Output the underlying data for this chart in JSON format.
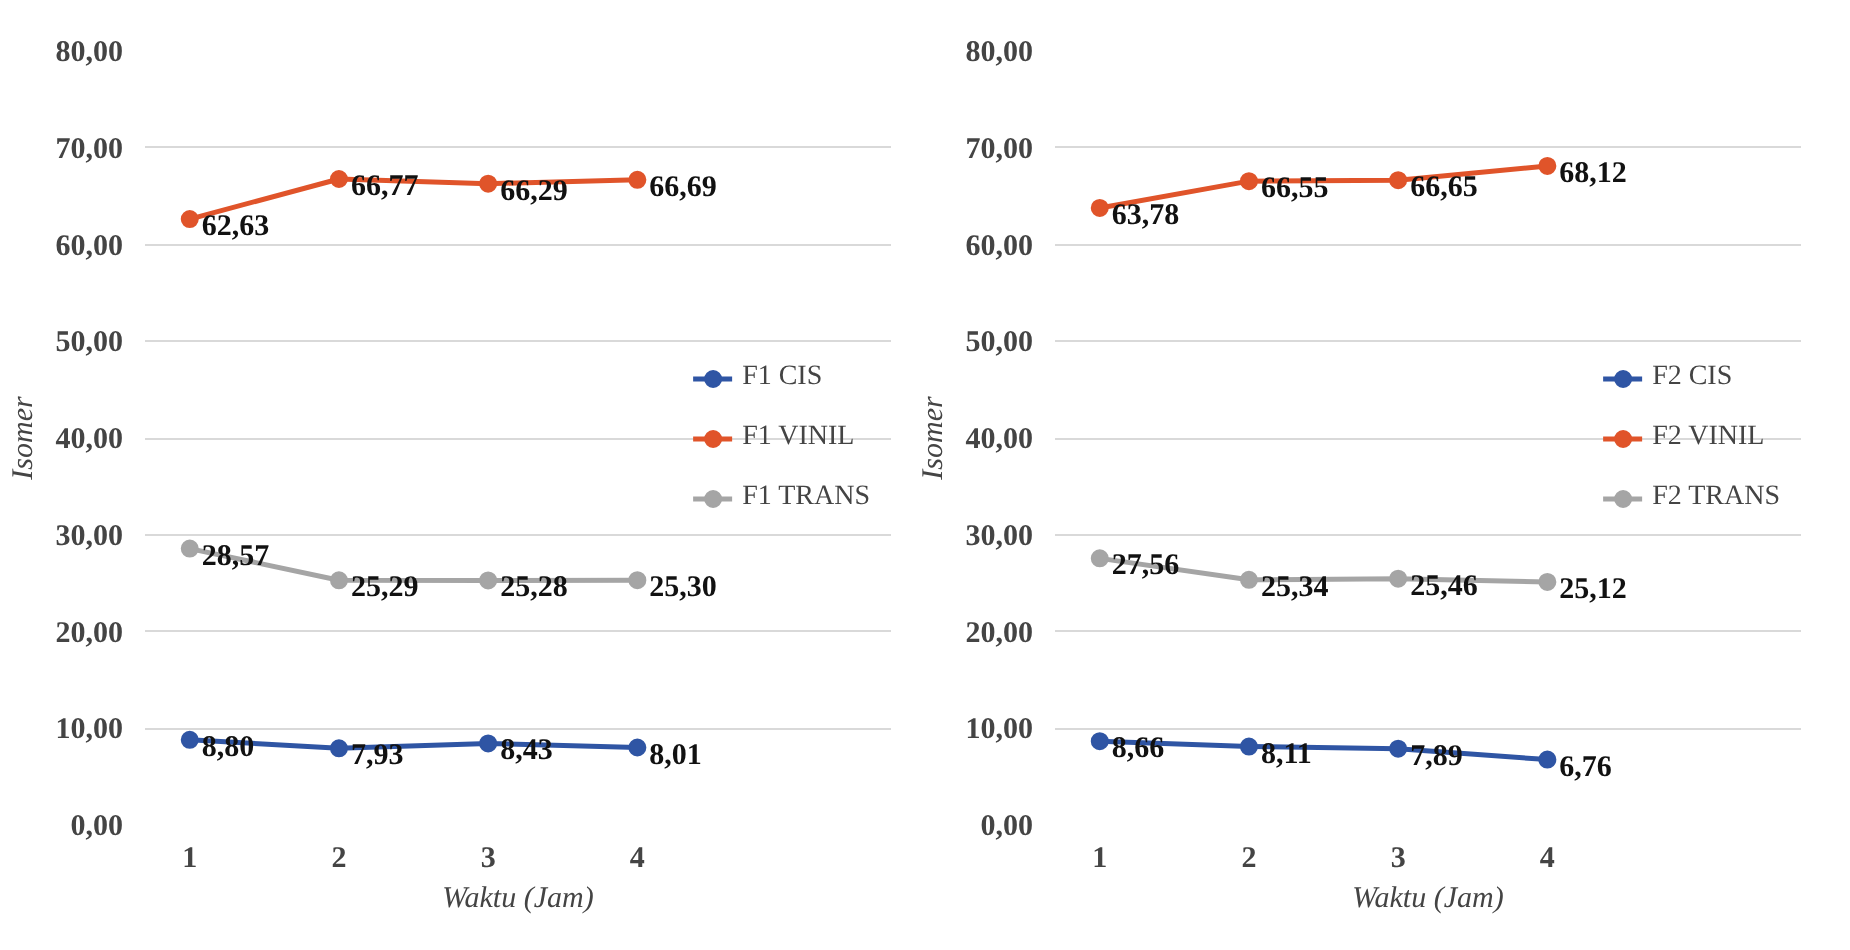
{
  "chart_data": [
    {
      "type": "line",
      "xlabel": "Waktu (Jam)",
      "ylabel": "Isomer",
      "categories": [
        "1",
        "2",
        "3",
        "4"
      ],
      "ylim": [
        0,
        80
      ],
      "yticks": [
        {
          "value": 0,
          "label": "0,00"
        },
        {
          "value": 10,
          "label": "10,00"
        },
        {
          "value": 20,
          "label": "20,00"
        },
        {
          "value": 30,
          "label": "30,00"
        },
        {
          "value": 40,
          "label": "40,00"
        },
        {
          "value": 50,
          "label": "50,00"
        },
        {
          "value": 60,
          "label": "60,00"
        },
        {
          "value": 70,
          "label": "70,00"
        },
        {
          "value": 80,
          "label": "80,00"
        }
      ],
      "grid": "y",
      "legend": "right",
      "marker": "circle",
      "line_style": "solid",
      "series": [
        {
          "name": "F1 CIS",
          "color": "#2f55a4",
          "values": [
            8.8,
            7.93,
            8.43,
            8.01
          ],
          "value_labels": [
            "8,80",
            "7,93",
            "8,43",
            "8,01"
          ]
        },
        {
          "name": "F1 VINIL",
          "color": "#e0542a",
          "values": [
            62.63,
            66.77,
            66.29,
            66.69
          ],
          "value_labels": [
            "62,63",
            "66,77",
            "66,29",
            "66,69"
          ]
        },
        {
          "name": "F1 TRANS",
          "color": "#a5a5a5",
          "values": [
            28.57,
            25.29,
            25.28,
            25.3
          ],
          "value_labels": [
            "28,57",
            "25,29",
            "25,28",
            "25,30"
          ]
        }
      ]
    },
    {
      "type": "line",
      "xlabel": "Waktu (Jam)",
      "ylabel": "Isomer",
      "categories": [
        "1",
        "2",
        "3",
        "4"
      ],
      "ylim": [
        0,
        80
      ],
      "yticks": [
        {
          "value": 0,
          "label": "0,00"
        },
        {
          "value": 10,
          "label": "10,00"
        },
        {
          "value": 20,
          "label": "20,00"
        },
        {
          "value": 30,
          "label": "30,00"
        },
        {
          "value": 40,
          "label": "40,00"
        },
        {
          "value": 50,
          "label": "50,00"
        },
        {
          "value": 60,
          "label": "60,00"
        },
        {
          "value": 70,
          "label": "70,00"
        },
        {
          "value": 80,
          "label": "80,00"
        }
      ],
      "grid": "y",
      "legend": "right",
      "marker": "circle",
      "line_style": "solid",
      "series": [
        {
          "name": "F2 CIS",
          "color": "#2f55a4",
          "values": [
            8.66,
            8.11,
            7.89,
            6.76
          ],
          "value_labels": [
            "8,66",
            "8,11",
            "7,89",
            "6,76"
          ]
        },
        {
          "name": "F2 VINIL",
          "color": "#e0542a",
          "values": [
            63.78,
            66.55,
            66.65,
            68.12
          ],
          "value_labels": [
            "63,78",
            "66,55",
            "66,65",
            "68,12"
          ]
        },
        {
          "name": "F2 TRANS",
          "color": "#a5a5a5",
          "values": [
            27.56,
            25.34,
            25.46,
            25.12
          ],
          "value_labels": [
            "27,56",
            "25,34",
            "25,46",
            "25,12"
          ]
        }
      ]
    }
  ]
}
